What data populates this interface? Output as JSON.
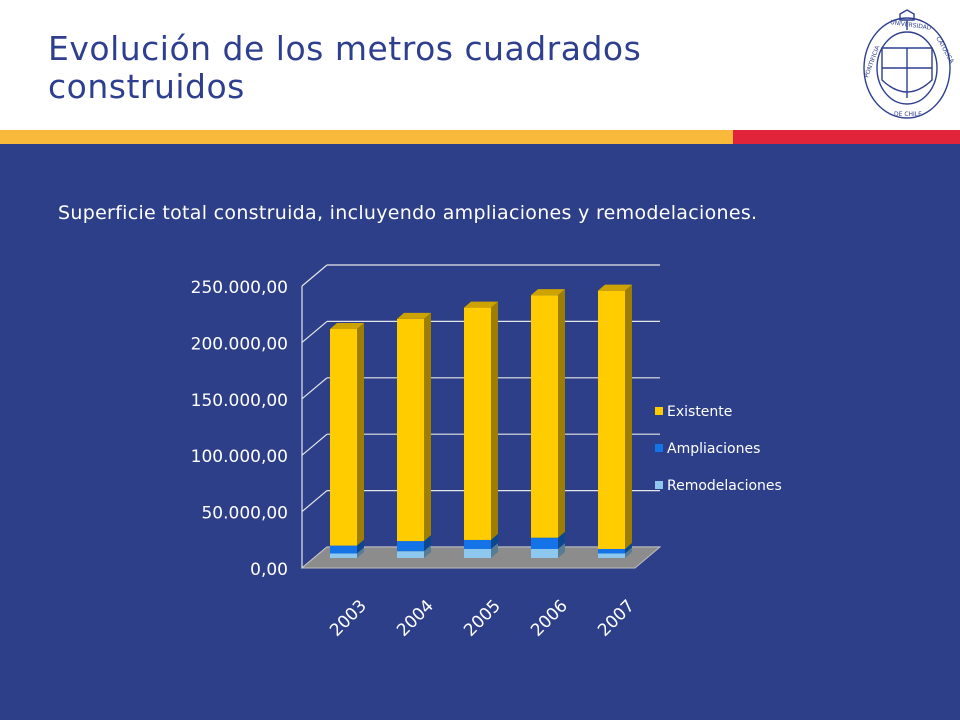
{
  "slide": {
    "title_line1": "Evolución de los metros cuadrados",
    "title_line2": "construidos",
    "subtitle": "Superficie total construida, incluyendo ampliaciones y remodelaciones."
  },
  "logo": {
    "text": "PONTIFICIA UNIVERSIDAD CATOLICA DE CHILE",
    "color": "#2e3f8f"
  },
  "colors": {
    "stripe_yellow": "#f9b93a",
    "stripe_red": "#e2243b",
    "background": "#2e3f8a",
    "existente": "#ffcc00",
    "ampliaciones": "#1473e6",
    "remodelaciones": "#8ec8ee"
  },
  "chart_data": {
    "type": "bar",
    "stacked": true,
    "three_d": true,
    "categories": [
      "2003",
      "2004",
      "2005",
      "2006",
      "2007"
    ],
    "series": [
      {
        "name": "Remodelaciones",
        "color": "#8ec8ee",
        "values": [
          4000,
          6000,
          8000,
          8000,
          4000
        ]
      },
      {
        "name": "Ampliaciones",
        "color": "#1473e6",
        "values": [
          7000,
          9000,
          8000,
          10000,
          4000
        ]
      },
      {
        "name": "Existente",
        "color": "#ffcc00",
        "values": [
          192000,
          197000,
          206000,
          215000,
          229000
        ]
      }
    ],
    "yticks": [
      "0,00",
      "50.000,00",
      "100.000,00",
      "150.000,00",
      "200.000,00",
      "250.000,00"
    ],
    "ylim": [
      0,
      250000
    ],
    "grid": true,
    "legend_position": "right"
  }
}
